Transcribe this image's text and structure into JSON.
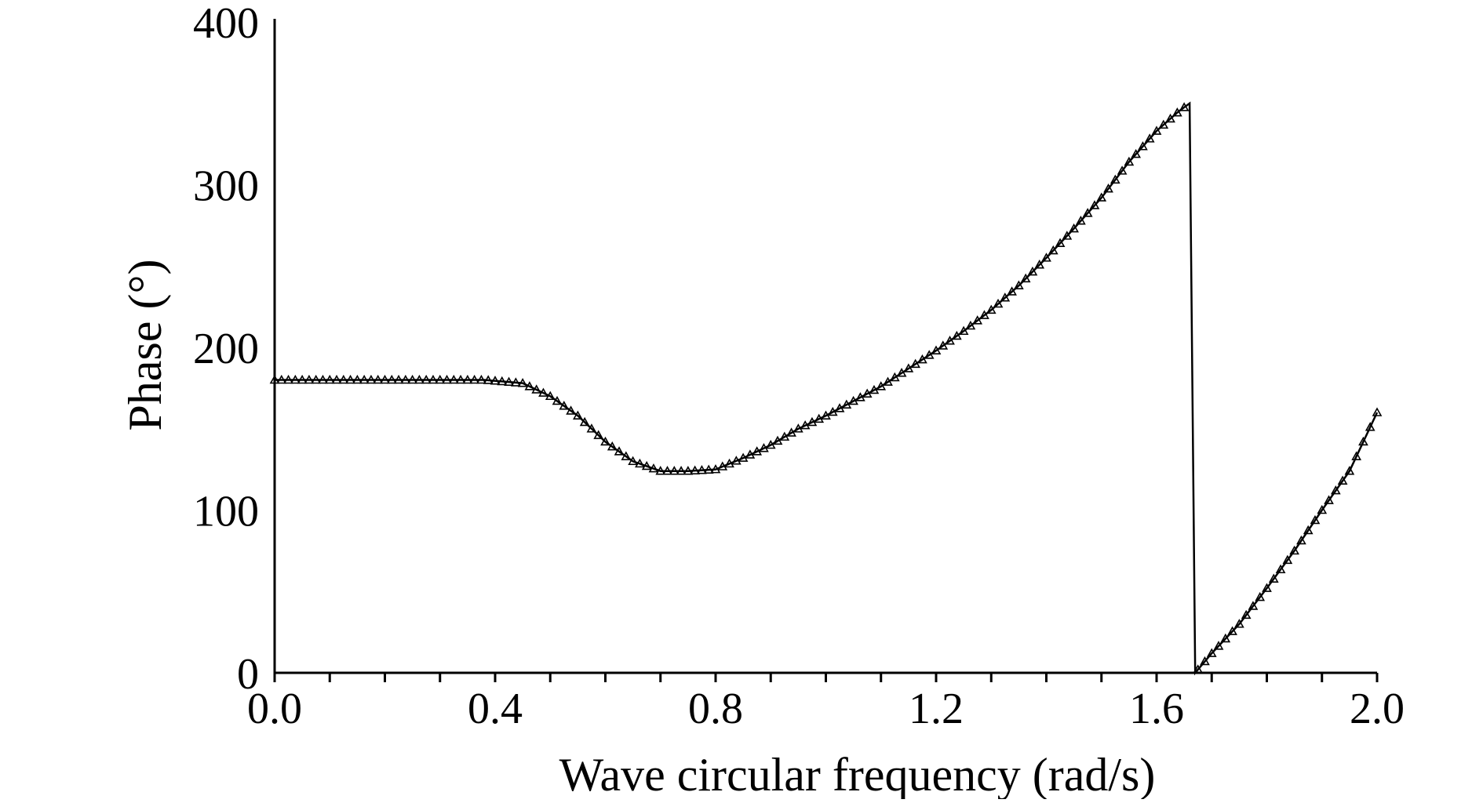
{
  "chart_data": {
    "type": "line",
    "title": "",
    "xlabel": "Wave circular frequency (rad/s)",
    "ylabel": "Phase (°)",
    "xlim": [
      0.0,
      2.0
    ],
    "ylim": [
      0,
      400
    ],
    "x_ticks": [
      0.0,
      0.4,
      0.8,
      1.2,
      1.6,
      2.0
    ],
    "x_tick_labels": [
      "0.0",
      "0.4",
      "0.8",
      "1.2",
      "1.6",
      "2.0"
    ],
    "y_ticks": [
      0,
      100,
      200,
      300,
      400
    ],
    "y_tick_labels": [
      "0",
      "100",
      "200",
      "300",
      "400"
    ],
    "x_minor_step": 0.1,
    "grid": false,
    "legend": "none",
    "marker": "triangle",
    "line_color": "#000000",
    "series": [
      {
        "x": [
          0.0,
          0.1,
          0.2,
          0.3,
          0.38,
          0.45,
          0.5,
          0.55,
          0.6,
          0.65,
          0.7,
          0.75,
          0.8,
          0.85,
          0.9,
          0.95,
          1.0,
          1.05,
          1.1,
          1.15,
          1.2,
          1.25,
          1.3,
          1.35,
          1.4,
          1.45,
          1.5,
          1.55,
          1.6,
          1.64,
          1.66,
          1.67,
          1.7,
          1.75,
          1.8,
          1.85,
          1.9,
          1.95,
          2.0
        ],
        "y": [
          180,
          180,
          180,
          180,
          180,
          178,
          170,
          158,
          142,
          130,
          124,
          124,
          125,
          132,
          140,
          150,
          158,
          167,
          176,
          187,
          198,
          210,
          223,
          238,
          255,
          273,
          292,
          314,
          333,
          345,
          350,
          0,
          12,
          30,
          52,
          75,
          100,
          124,
          160
        ]
      }
    ]
  }
}
